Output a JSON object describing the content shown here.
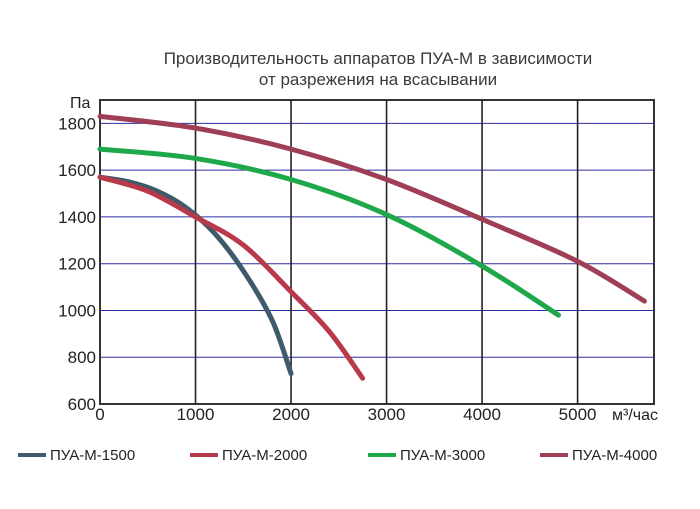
{
  "chart_data": {
    "type": "line",
    "title_line1": "Производительность аппаратов ПУА-М в зависимости",
    "title_line2": "от разрежения на всасывании",
    "ylabel": "Па",
    "xlabel": "м³/час",
    "xlim": [
      0,
      5800
    ],
    "ylim": [
      600,
      1900
    ],
    "x_ticks": [
      "0",
      "1000",
      "2000",
      "3000",
      "4000",
      "5000"
    ],
    "y_ticks": [
      "600",
      "800",
      "1000",
      "1200",
      "1400",
      "1600",
      "1800"
    ],
    "grid": true,
    "legend_position": "bottom",
    "series": [
      {
        "name": "ПУА-М-1500",
        "color": "#3f5a6b",
        "points": [
          [
            0,
            1570
          ],
          [
            300,
            1550
          ],
          [
            600,
            1510
          ],
          [
            900,
            1440
          ],
          [
            1200,
            1330
          ],
          [
            1500,
            1170
          ],
          [
            1800,
            960
          ],
          [
            2000,
            730
          ]
        ]
      },
      {
        "name": "ПУА-М-2000",
        "color": "#b8394a",
        "points": [
          [
            0,
            1570
          ],
          [
            500,
            1510
          ],
          [
            1000,
            1400
          ],
          [
            1500,
            1280
          ],
          [
            2000,
            1080
          ],
          [
            2400,
            910
          ],
          [
            2750,
            710
          ]
        ]
      },
      {
        "name": "ПУА-М-3000",
        "color": "#1fa84a",
        "points": [
          [
            0,
            1690
          ],
          [
            1000,
            1650
          ],
          [
            2000,
            1560
          ],
          [
            3000,
            1410
          ],
          [
            4000,
            1190
          ],
          [
            4800,
            980
          ]
        ]
      },
      {
        "name": "ПУА-М-4000",
        "color": "#9e3f55",
        "points": [
          [
            0,
            1830
          ],
          [
            1000,
            1780
          ],
          [
            2000,
            1690
          ],
          [
            3000,
            1560
          ],
          [
            4000,
            1390
          ],
          [
            5000,
            1210
          ],
          [
            5700,
            1040
          ]
        ]
      }
    ]
  }
}
